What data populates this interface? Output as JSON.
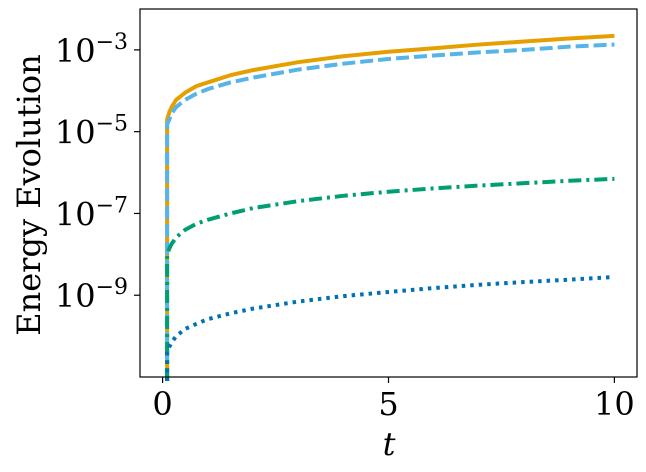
{
  "chart_data": {
    "type": "line",
    "title": "",
    "xlabel": "t",
    "ylabel": "Energy Evolution",
    "xlim": [
      -0.5,
      10.5
    ],
    "ylim": [
      1e-11,
      0.01
    ],
    "yscale": "log",
    "grid": false,
    "legend": "none",
    "x_ticks": [
      {
        "value": 0,
        "label": "0"
      },
      {
        "value": 5,
        "label": "5"
      },
      {
        "value": 10,
        "label": "10"
      }
    ],
    "y_ticks": [
      {
        "value": 0.001,
        "base": "10",
        "exp": "−3"
      },
      {
        "value": 1e-05,
        "base": "10",
        "exp": "−5"
      },
      {
        "value": 1e-07,
        "base": "10",
        "exp": "−7"
      },
      {
        "value": 1e-09,
        "base": "10",
        "exp": "−9"
      }
    ],
    "series": [
      {
        "color": "#E69F00",
        "dash": "solid",
        "x": [
          0.1,
          0.15,
          0.2,
          0.3,
          0.5,
          0.75,
          1,
          1.5,
          2,
          3,
          4,
          5,
          6,
          7,
          8,
          9,
          10
        ],
        "y": [
          2e-05,
          3e-05,
          4e-05,
          6e-05,
          9e-05,
          0.00013,
          0.00016,
          0.00024,
          0.00032,
          0.0005,
          0.0007,
          0.0009,
          0.0011,
          0.00135,
          0.0016,
          0.0019,
          0.0022
        ]
      },
      {
        "color": "#56B4E9",
        "dash": "dashed",
        "x": [
          0.1,
          0.15,
          0.2,
          0.3,
          0.5,
          0.75,
          1,
          1.5,
          2,
          3,
          4,
          5,
          6,
          7,
          8,
          9,
          10
        ],
        "y": [
          1.5e-05,
          2e-05,
          2.8e-05,
          4e-05,
          6e-05,
          8.5e-05,
          0.00011,
          0.00016,
          0.00021,
          0.00033,
          0.00046,
          0.0006,
          0.00073,
          0.00087,
          0.001,
          0.0012,
          0.00135
        ]
      },
      {
        "color": "#009E73",
        "dash": "dashdot",
        "x": [
          0.1,
          0.15,
          0.2,
          0.3,
          0.5,
          0.75,
          1,
          1.5,
          2,
          3,
          4,
          5,
          6,
          7,
          8,
          9,
          10
        ],
        "y": [
          1e-08,
          1.4e-08,
          1.8e-08,
          2.6e-08,
          4e-08,
          5.6e-08,
          7e-08,
          1e-07,
          1.35e-07,
          2e-07,
          2.7e-07,
          3.4e-07,
          4.1e-07,
          4.8e-07,
          5.5e-07,
          6.3e-07,
          7e-07
        ]
      },
      {
        "color": "#0072B2",
        "dash": "dotted",
        "x": [
          0.1,
          0.15,
          0.2,
          0.3,
          0.5,
          0.75,
          1,
          1.5,
          2,
          3,
          4,
          5,
          6,
          7,
          8,
          9,
          10
        ],
        "y": [
          4e-11,
          5.5e-11,
          7e-11,
          1e-10,
          1.5e-10,
          2e-10,
          2.6e-10,
          3.6e-10,
          4.7e-10,
          7e-10,
          9.5e-10,
          1.2e-09,
          1.5e-09,
          1.8e-09,
          2.1e-09,
          2.4e-09,
          2.8e-09
        ]
      }
    ]
  }
}
